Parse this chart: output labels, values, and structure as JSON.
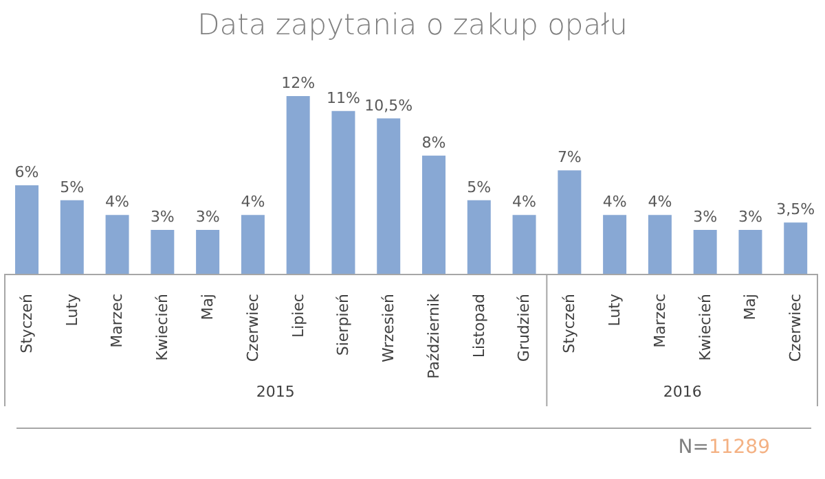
{
  "chart_data": {
    "type": "bar",
    "title": "Data zapytania o zakup opału",
    "categories": [
      "Styczeń",
      "Luty",
      "Marzec",
      "Kwiecień",
      "Maj",
      "Czerwiec",
      "Lipiec",
      "Sierpień",
      "Wrzesień",
      "Październik",
      "Listopad",
      "Grudzień",
      "Styczeń",
      "Luty",
      "Marzec",
      "Kwiecień",
      "Maj",
      "Czerwiec"
    ],
    "values": [
      6,
      5,
      4,
      3,
      3,
      4,
      12,
      11,
      10.5,
      8,
      5,
      4,
      7,
      4,
      4,
      3,
      3,
      3.5
    ],
    "value_labels": [
      "6%",
      "5%",
      "4%",
      "3%",
      "3%",
      "4%",
      "12%",
      "11%",
      "10,5%",
      "8%",
      "5%",
      "4%",
      "7%",
      "4%",
      "4%",
      "3%",
      "3%",
      "3,5%"
    ],
    "color": "#88a8d4",
    "grid": false,
    "legend": false,
    "annotations": [
      "2015",
      "2016",
      "N=11289"
    ]
  }
}
